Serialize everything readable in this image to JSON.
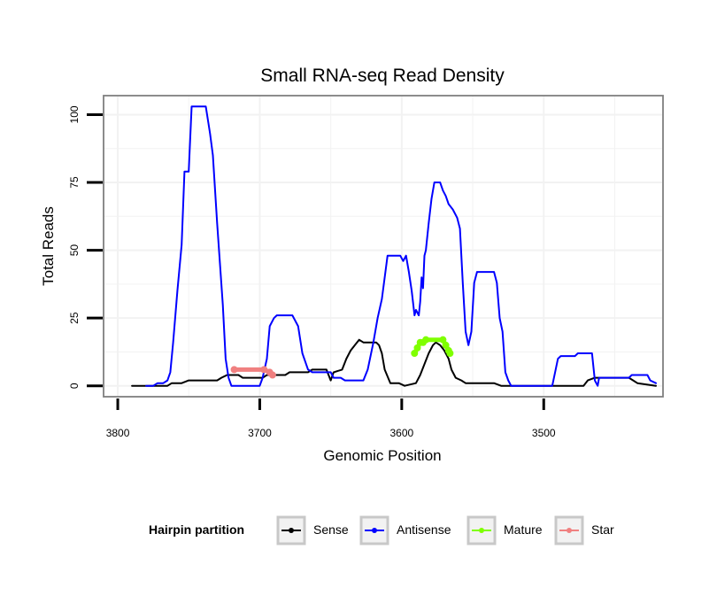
{
  "chart_data": {
    "type": "line",
    "title": "Small RNA-seq Read Density",
    "xlabel": "Genomic Position",
    "ylabel": "Total Reads",
    "xlim": [
      3810,
      3416
    ],
    "x_reversed": true,
    "ylim": [
      -4,
      107
    ],
    "x_ticks": [
      3800,
      3700,
      3600,
      3500
    ],
    "x_tick_labels": [
      "3800",
      "3700",
      "3600",
      "3500"
    ],
    "y_ticks": [
      0,
      25,
      50,
      75,
      100
    ],
    "y_tick_labels": [
      "0",
      "25",
      "50",
      "75",
      "100"
    ],
    "grid": true,
    "legend": {
      "title": "Hairpin partition",
      "position": "bottom",
      "entries": [
        {
          "label": "Sense",
          "color": "#000000"
        },
        {
          "label": "Antisense",
          "color": "#0000ff"
        },
        {
          "label": "Mature",
          "color": "#7fff00"
        },
        {
          "label": "Star",
          "color": "#f08080"
        }
      ]
    },
    "series": [
      {
        "name": "Sense",
        "color": "#000000",
        "points": [
          [
            3790,
            0
          ],
          [
            3765,
            0
          ],
          [
            3762,
            1
          ],
          [
            3755,
            1
          ],
          [
            3750,
            2
          ],
          [
            3730,
            2
          ],
          [
            3727,
            3
          ],
          [
            3723,
            4
          ],
          [
            3715,
            4
          ],
          [
            3712,
            3
          ],
          [
            3698,
            3
          ],
          [
            3695,
            4
          ],
          [
            3682,
            4
          ],
          [
            3679,
            5
          ],
          [
            3666,
            5
          ],
          [
            3663,
            6
          ],
          [
            3653,
            6
          ],
          [
            3650,
            2
          ],
          [
            3648,
            5
          ],
          [
            3642,
            6
          ],
          [
            3639,
            10
          ],
          [
            3636,
            13
          ],
          [
            3633,
            15
          ],
          [
            3630,
            17
          ],
          [
            3627,
            16
          ],
          [
            3618,
            16
          ],
          [
            3616,
            15
          ],
          [
            3614,
            12
          ],
          [
            3612,
            6
          ],
          [
            3608,
            1
          ],
          [
            3602,
            1
          ],
          [
            3598,
            0
          ],
          [
            3590,
            1
          ],
          [
            3587,
            4
          ],
          [
            3584,
            8
          ],
          [
            3581,
            12
          ],
          [
            3578,
            15
          ],
          [
            3576,
            16
          ],
          [
            3573,
            15
          ],
          [
            3570,
            13
          ],
          [
            3567,
            10
          ],
          [
            3565,
            6
          ],
          [
            3562,
            3
          ],
          [
            3558,
            2
          ],
          [
            3555,
            1
          ],
          [
            3535,
            1
          ],
          [
            3530,
            0
          ],
          [
            3472,
            0
          ],
          [
            3469,
            2
          ],
          [
            3464,
            3
          ],
          [
            3440,
            3
          ],
          [
            3437,
            2
          ],
          [
            3434,
            1
          ],
          [
            3421,
            0
          ]
        ]
      },
      {
        "name": "Antisense",
        "color": "#0000ff",
        "points": [
          [
            3780,
            0
          ],
          [
            3775,
            0
          ],
          [
            3772,
            1
          ],
          [
            3768,
            1
          ],
          [
            3765,
            2
          ],
          [
            3763,
            5
          ],
          [
            3761,
            16
          ],
          [
            3758,
            35
          ],
          [
            3755,
            52
          ],
          [
            3753,
            79
          ],
          [
            3750,
            79
          ],
          [
            3748,
            103
          ],
          [
            3738,
            103
          ],
          [
            3735,
            93
          ],
          [
            3733,
            85
          ],
          [
            3730,
            60
          ],
          [
            3728,
            45
          ],
          [
            3726,
            30
          ],
          [
            3724,
            10
          ],
          [
            3722,
            3
          ],
          [
            3720,
            0
          ],
          [
            3700,
            0
          ],
          [
            3698,
            3
          ],
          [
            3695,
            10
          ],
          [
            3693,
            22
          ],
          [
            3690,
            25
          ],
          [
            3688,
            26
          ],
          [
            3677,
            26
          ],
          [
            3673,
            22
          ],
          [
            3670,
            12
          ],
          [
            3666,
            6
          ],
          [
            3663,
            5
          ],
          [
            3650,
            5
          ],
          [
            3648,
            3
          ],
          [
            3643,
            3
          ],
          [
            3640,
            2
          ],
          [
            3627,
            2
          ],
          [
            3624,
            6
          ],
          [
            3620,
            16
          ],
          [
            3617,
            25
          ],
          [
            3614,
            32
          ],
          [
            3610,
            48
          ],
          [
            3601,
            48
          ],
          [
            3599,
            46
          ],
          [
            3597,
            48
          ],
          [
            3595,
            42
          ],
          [
            3593,
            35
          ],
          [
            3591,
            26
          ],
          [
            3590,
            28
          ],
          [
            3588,
            26
          ],
          [
            3587,
            31
          ],
          [
            3586,
            40
          ],
          [
            3585,
            36
          ],
          [
            3584,
            48
          ],
          [
            3583,
            50
          ],
          [
            3581,
            60
          ],
          [
            3579,
            69
          ],
          [
            3577,
            75
          ],
          [
            3573,
            75
          ],
          [
            3571,
            72
          ],
          [
            3569,
            70
          ],
          [
            3567,
            67
          ],
          [
            3564,
            65
          ],
          [
            3561,
            62
          ],
          [
            3559,
            58
          ],
          [
            3557,
            38
          ],
          [
            3555,
            20
          ],
          [
            3553,
            15
          ],
          [
            3551,
            20
          ],
          [
            3549,
            38
          ],
          [
            3547,
            42
          ],
          [
            3535,
            42
          ],
          [
            3533,
            38
          ],
          [
            3531,
            25
          ],
          [
            3529,
            20
          ],
          [
            3527,
            5
          ],
          [
            3525,
            2
          ],
          [
            3523,
            0
          ],
          [
            3494,
            0
          ],
          [
            3492,
            5
          ],
          [
            3490,
            10
          ],
          [
            3488,
            11
          ],
          [
            3478,
            11
          ],
          [
            3476,
            12
          ],
          [
            3466,
            12
          ],
          [
            3464,
            2
          ],
          [
            3462,
            0
          ],
          [
            3461,
            3
          ],
          [
            3440,
            3
          ],
          [
            3438,
            4
          ],
          [
            3427,
            4
          ],
          [
            3425,
            2
          ],
          [
            3421,
            1
          ]
        ]
      },
      {
        "name": "Mature",
        "color": "#7fff00",
        "points": [
          [
            3591,
            12
          ],
          [
            3589,
            14
          ],
          [
            3587,
            16
          ],
          [
            3585,
            16
          ],
          [
            3583,
            17
          ],
          [
            3571,
            17
          ],
          [
            3569,
            15
          ],
          [
            3567,
            13
          ],
          [
            3566,
            12
          ]
        ]
      },
      {
        "name": "Star",
        "color": "#f08080",
        "points": [
          [
            3718,
            6
          ],
          [
            3697,
            6
          ],
          [
            3693,
            5
          ],
          [
            3691,
            4
          ]
        ]
      }
    ]
  }
}
